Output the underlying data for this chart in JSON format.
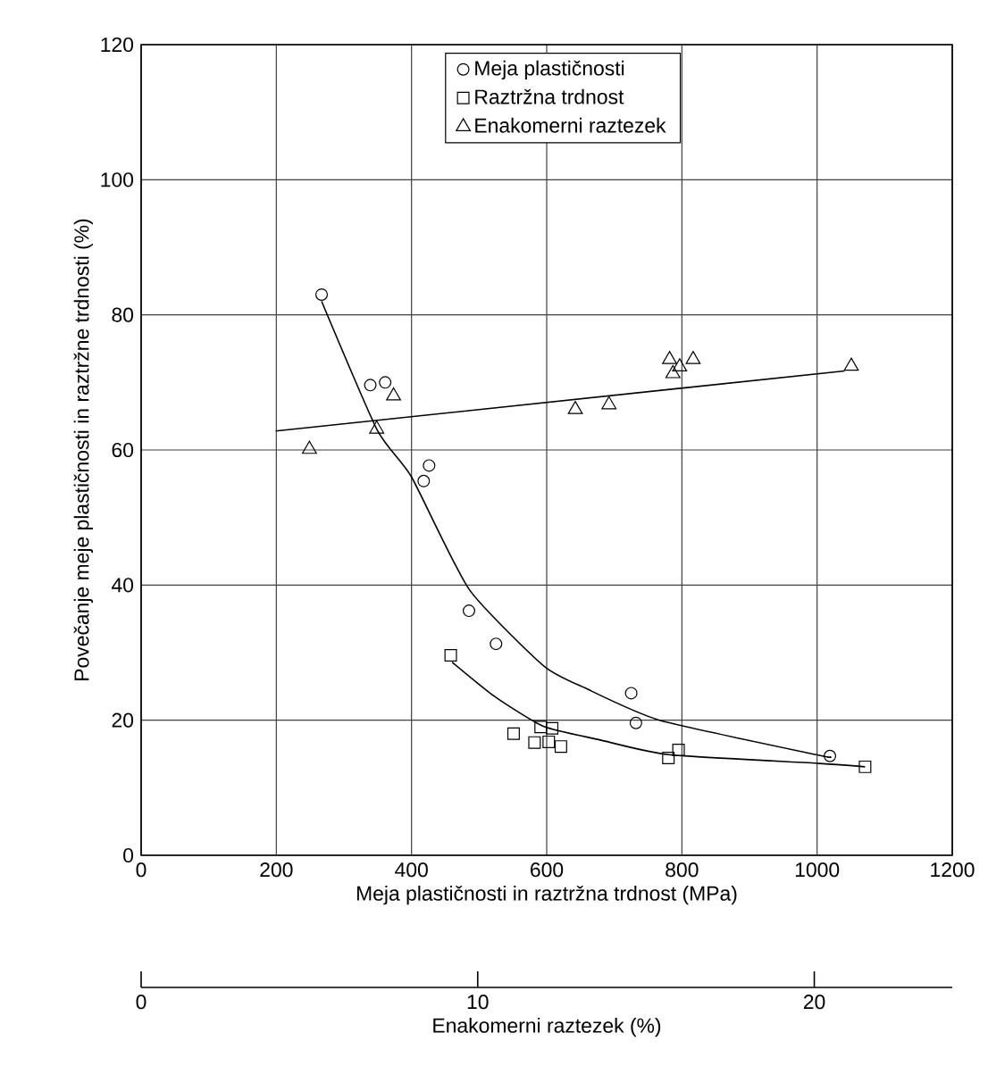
{
  "chart_data": {
    "type": "scatter",
    "xlabel": "Meja plastičnosti in raztržna trdnost (MPa)",
    "ylabel": "Povečanje meje plastičnosti in raztržne trdnosti (%)",
    "x2label": "Enakomerni raztezek (%)",
    "xlim": [
      0,
      1200
    ],
    "xticks": [
      0,
      200,
      400,
      600,
      800,
      1000,
      1200
    ],
    "ylim": [
      0,
      120
    ],
    "yticks": [
      0,
      20,
      40,
      60,
      80,
      100,
      120
    ],
    "x2lim": [
      0,
      24.1
    ],
    "x2ticks": [
      0,
      10,
      20
    ],
    "grid": true,
    "legend": "top",
    "series": [
      {
        "name": "Meja plastičnosti",
        "marker": "circle",
        "color": "#000000",
        "x": [
          267,
          339,
          361,
          426,
          418,
          485,
          525,
          725,
          732,
          1019
        ],
        "values": [
          83,
          69.6,
          70,
          57.7,
          55.4,
          36.2,
          31.3,
          24,
          19.6,
          14.7
        ]
      },
      {
        "name": "Raztržna trdnost",
        "marker": "square",
        "color": "#000000",
        "x": [
          458,
          551,
          582,
          591,
          608,
          603,
          621,
          780,
          795,
          1071
        ],
        "values": [
          29.6,
          18,
          16.7,
          19,
          18.8,
          16.8,
          16.1,
          14.4,
          15.6,
          13.1
        ]
      },
      {
        "name": "Enakomerni raztezek",
        "marker": "triangle",
        "axis": "x2",
        "color": "#000000",
        "x": [
          5.0,
          7.0,
          7.5,
          12.9,
          13.9,
          15.7,
          15.8,
          16.0,
          16.4,
          21.1
        ],
        "values": [
          60.1,
          63.1,
          68,
          66,
          66.7,
          73.4,
          71.3,
          72.3,
          73.4,
          72.4
        ]
      },
      {
        "type": "line",
        "marker": "none",
        "color": "#000000",
        "x": [
          267,
          349,
          400,
          485,
          596,
          656,
          767,
          1003,
          1019
        ],
        "values": [
          82,
          63,
          56,
          39.4,
          28,
          24.8,
          20,
          14.8,
          14.6
        ]
      },
      {
        "type": "line",
        "marker": "none",
        "color": "#000000",
        "x": [
          460,
          523,
          595,
          678,
          780,
          1003,
          1071
        ],
        "values": [
          28.6,
          23.5,
          19.1,
          17.1,
          14.9,
          13.6,
          13.1
        ]
      },
      {
        "type": "line",
        "marker": "none",
        "axis": "x2",
        "color": "#000000",
        "x": [
          4.0,
          20.9
        ],
        "values": [
          62.8,
          71.7
        ]
      }
    ]
  }
}
